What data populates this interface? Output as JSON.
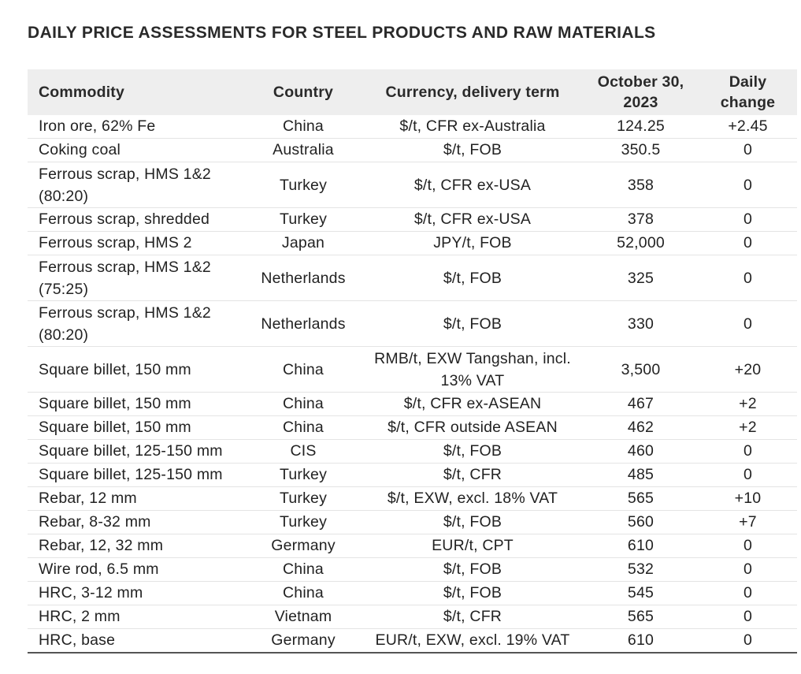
{
  "title": "DAILY PRICE ASSESSMENTS FOR STEEL PRODUCTS AND RAW MATERIALS",
  "table": {
    "headers": {
      "commodity": "Commodity",
      "country": "Country",
      "currency": "Currency, delivery term",
      "date": "October 30, 2023",
      "change": "Daily change"
    },
    "rows": [
      {
        "commodity": "Iron ore, 62% Fe",
        "country": "China",
        "currency": "$/t, CFR ex-Australia",
        "price": "124.25",
        "change": "+2.45"
      },
      {
        "commodity": "Coking coal",
        "country": "Australia",
        "currency": "$/t, FOB",
        "price": "350.5",
        "change": "0"
      },
      {
        "commodity": "Ferrous scrap, HMS 1&2 (80:20)",
        "country": "Turkey",
        "currency": "$/t, CFR ex-USA",
        "price": "358",
        "change": "0"
      },
      {
        "commodity": "Ferrous scrap, shredded",
        "country": "Turkey",
        "currency": "$/t, CFR ex-USA",
        "price": "378",
        "change": "0"
      },
      {
        "commodity": "Ferrous scrap, HMS 2",
        "country": "Japan",
        "currency": "JPY/t, FOB",
        "price": "52,000",
        "change": "0"
      },
      {
        "commodity": "Ferrous scrap, HMS 1&2 (75:25)",
        "country": "Netherlands",
        "currency": "$/t, FOB",
        "price": "325",
        "change": "0"
      },
      {
        "commodity": "Ferrous scrap, HMS 1&2 (80:20)",
        "country": "Netherlands",
        "currency": "$/t, FOB",
        "price": "330",
        "change": "0"
      },
      {
        "commodity": "Square billet, 150 mm",
        "country": "China",
        "currency": "RMB/t, EXW Tangshan, incl. 13% VAT",
        "price": "3,500",
        "change": "+20"
      },
      {
        "commodity": "Square billet, 150 mm",
        "country": "China",
        "currency": "$/t, CFR ex-ASEAN",
        "price": "467",
        "change": "+2"
      },
      {
        "commodity": "Square billet, 150 mm",
        "country": "China",
        "currency": "$/t, CFR outside ASEAN",
        "price": "462",
        "change": "+2"
      },
      {
        "commodity": "Square billet, 125-150 mm",
        "country": "CIS",
        "currency": "$/t, FOB",
        "price": "460",
        "change": "0"
      },
      {
        "commodity": "Square billet, 125-150 mm",
        "country": "Turkey",
        "currency": "$/t, CFR",
        "price": "485",
        "change": "0"
      },
      {
        "commodity": "Rebar, 12 mm",
        "country": "Turkey",
        "currency": "$/t, EXW, excl. 18% VAT",
        "price": "565",
        "change": "+10"
      },
      {
        "commodity": "Rebar, 8-32 mm",
        "country": "Turkey",
        "currency": "$/t, FOB",
        "price": "560",
        "change": "+7"
      },
      {
        "commodity": "Rebar, 12, 32 mm",
        "country": "Germany",
        "currency": "EUR/t, CPT",
        "price": "610",
        "change": "0"
      },
      {
        "commodity": "Wire rod, 6.5 mm",
        "country": "China",
        "currency": "$/t, FOB",
        "price": "532",
        "change": "0"
      },
      {
        "commodity": "HRC, 3-12 mm",
        "country": "China",
        "currency": "$/t, FOB",
        "price": "545",
        "change": "0"
      },
      {
        "commodity": "HRC, 2 mm",
        "country": "Vietnam",
        "currency": "$/t, CFR",
        "price": "565",
        "change": "0"
      },
      {
        "commodity": "HRC, base",
        "country": "Germany",
        "currency": "EUR/t, EXW, excl. 19% VAT",
        "price": "610",
        "change": "0"
      }
    ]
  }
}
